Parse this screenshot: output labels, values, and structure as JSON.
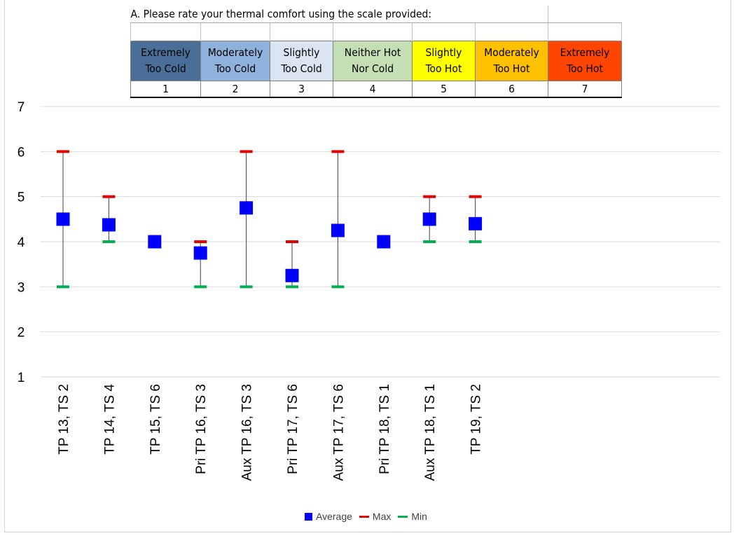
{
  "scale_table": {
    "question": "A. Please rate your thermal comfort using the scale provided:",
    "columns": [
      {
        "line1": "Extremely",
        "line2": "Too Cold",
        "num": "1",
        "color": "#4a6e98"
      },
      {
        "line1": "Moderately",
        "line2": "Too Cold",
        "num": "2",
        "color": "#8fb2dc"
      },
      {
        "line1": "Slightly",
        "line2": "Too Cold",
        "num": "3",
        "color": "#dbe5f1"
      },
      {
        "line1": "Neither Hot",
        "line2": "Nor Cold",
        "num": "4",
        "color": "#c5dfb4"
      },
      {
        "line1": "Slightly",
        "line2": "Too Hot",
        "num": "5",
        "color": "#ffff00"
      },
      {
        "line1": "Moderately",
        "line2": "Too Hot",
        "num": "6",
        "color": "#ffc000"
      },
      {
        "line1": "Extremely",
        "line2": "Too Hot",
        "num": "7",
        "color": "#ff4500"
      }
    ]
  },
  "chart_data": {
    "type": "scatter",
    "categories": [
      "TP 13, TS 2",
      "TP 14, TS 4",
      "TP 15, TS 6",
      "Pri TP 16, TS 3",
      "Aux TP 16, TS 3",
      "Pri TP 17, TS 6",
      "Aux TP 17, TS 6",
      "Pri TP 18, TS 1",
      "Aux TP 18, TS 1",
      "TP 19, TS 2"
    ],
    "series": [
      {
        "name": "Average",
        "values": [
          4.5,
          4.375,
          4.0,
          3.75,
          4.75,
          3.25,
          4.25,
          4.0,
          4.5,
          4.4
        ],
        "color": "#0000ff",
        "marker": "square"
      },
      {
        "name": "Max",
        "values": [
          6,
          5,
          4,
          4,
          6,
          4,
          6,
          4,
          5,
          5
        ],
        "color": "#e00000",
        "marker": "dash"
      },
      {
        "name": "Min",
        "values": [
          3,
          4,
          4,
          3,
          3,
          3,
          3,
          4,
          4,
          4
        ],
        "color": "#00b050",
        "marker": "dash"
      }
    ],
    "y_ticks": [
      "1",
      "2",
      "3",
      "4",
      "5",
      "6",
      "7"
    ],
    "ylim": [
      1,
      7
    ],
    "grid": true,
    "legend": "bottom"
  }
}
